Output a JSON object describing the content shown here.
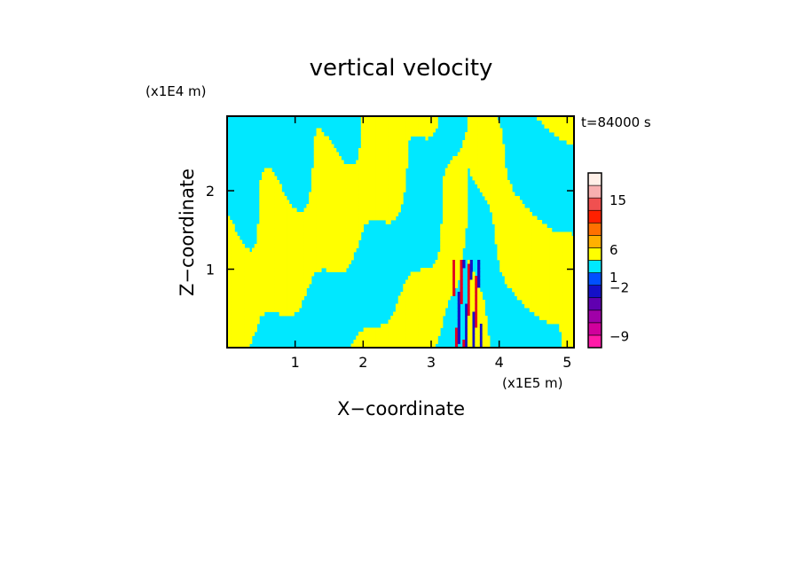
{
  "chart_data": {
    "type": "heatmap",
    "title": "vertical velocity",
    "xlabel": "X−coordinate",
    "ylabel": "Z−coordinate",
    "x_unit_label": "(x1E5 m)",
    "y_unit_label": "(x1E4 m)",
    "time_label": "t=84000 s",
    "xlim": [
      0,
      5.1
    ],
    "ylim": [
      0,
      2.95
    ],
    "x_ticks": [
      1,
      2,
      3,
      4,
      5
    ],
    "y_ticks": [
      1,
      2
    ],
    "x_tick_labels": [
      "1",
      "2",
      "3",
      "4",
      "5"
    ],
    "y_tick_labels": [
      "1",
      "2"
    ],
    "colorbar": {
      "levels": [
        {
          "color": "#ff1aa8"
        },
        {
          "color": "#d0009c"
        },
        {
          "color": "#a000a8"
        },
        {
          "color": "#6000b0"
        },
        {
          "color": "#1410c8"
        },
        {
          "color": "#0050ff"
        },
        {
          "color": "#00e8ff"
        },
        {
          "color": "#ffff00"
        },
        {
          "color": "#ffb000"
        },
        {
          "color": "#ff7000"
        },
        {
          "color": "#ff2000"
        },
        {
          "color": "#f05050"
        },
        {
          "color": "#f8b0b0"
        },
        {
          "color": "#fff0e8"
        }
      ],
      "tick_labels": [
        {
          "label": "−9",
          "level_index": 0.9
        },
        {
          "label": "−2",
          "level_index": 4.8
        },
        {
          "label": "1",
          "level_index": 5.6
        },
        {
          "label": "6",
          "level_index": 7.8
        },
        {
          "label": "15",
          "level_index": 11.8
        }
      ]
    },
    "field": {
      "positive_color": "#ffff00",
      "negative_color": "#00e8ff",
      "strong_updraft_color": "#e00020",
      "strong_downdraft_color": "#1410c8",
      "disturbance_center_x": 3.55,
      "disturbance_max_z": 1.1
    }
  }
}
